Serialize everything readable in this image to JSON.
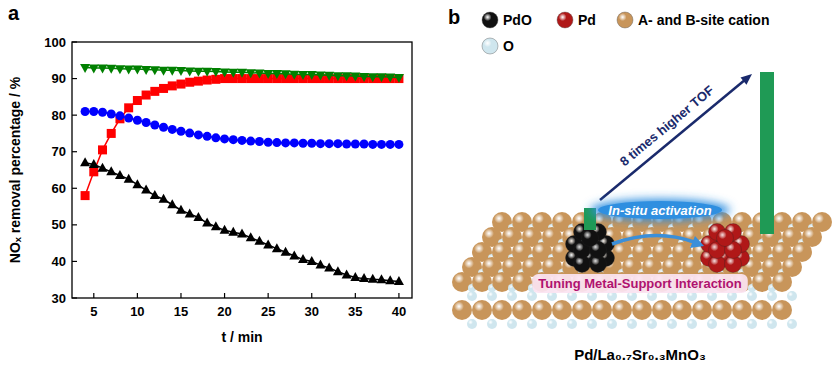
{
  "panel_labels": [
    "a",
    "b"
  ],
  "chart_data": {
    "type": "line",
    "xlabel": "t / min",
    "ylabel": "NOₓ removal percentage / %",
    "x": [
      4,
      5,
      6,
      7,
      8,
      9,
      10,
      11,
      12,
      13,
      14,
      15,
      16,
      17,
      18,
      19,
      20,
      21,
      22,
      23,
      24,
      25,
      26,
      27,
      28,
      29,
      30,
      31,
      32,
      33,
      34,
      35,
      36,
      37,
      38,
      39,
      40
    ],
    "xlim": [
      2.5,
      41.5
    ],
    "xticks": [
      5,
      10,
      15,
      20,
      25,
      30,
      35,
      40
    ],
    "ylim": [
      30,
      100
    ],
    "yticks": [
      30,
      40,
      50,
      60,
      70,
      80,
      90,
      100
    ],
    "grid": false,
    "series": [
      {
        "color": "#ff0000",
        "marker": "square",
        "line_style": "solid",
        "values": [
          58,
          64.5,
          70.5,
          75,
          79,
          82,
          84,
          85.5,
          86.5,
          87.3,
          88,
          88.5,
          89,
          89.3,
          89.6,
          89.8,
          90,
          90,
          90,
          90,
          90,
          90,
          90,
          90,
          90,
          90,
          90,
          90,
          90,
          90,
          90,
          90,
          90,
          90,
          90,
          90,
          90
        ]
      },
      {
        "color": "#0000ff",
        "marker": "circle",
        "line_style": "solid",
        "values": [
          81,
          81,
          80.8,
          80.3,
          79.8,
          79.2,
          78.6,
          78,
          77.3,
          76.7,
          76.1,
          75.6,
          75.1,
          74.6,
          74.2,
          73.8,
          73.5,
          73.3,
          73.1,
          72.9,
          72.8,
          72.6,
          72.5,
          72.4,
          72.4,
          72.3,
          72.3,
          72.2,
          72.2,
          72.2,
          72.1,
          72.1,
          72.1,
          72,
          72,
          72,
          72
        ]
      },
      {
        "color": "#000000",
        "marker": "triangle-up",
        "line_style": "solid",
        "values": [
          67,
          66.5,
          65.5,
          64.5,
          63.5,
          62.5,
          61,
          59.5,
          58,
          57,
          55.5,
          54,
          53,
          52,
          50.5,
          49.5,
          48.5,
          48,
          47.5,
          46.5,
          45.5,
          44.5,
          43.5,
          42.5,
          41.5,
          40.5,
          40,
          39,
          38.2,
          37.2,
          36.3,
          35.6,
          35.3,
          35.1,
          35,
          34.7,
          34.5
        ]
      },
      {
        "color": "#008000",
        "marker": "triangle-down",
        "line_style": "solid",
        "values": [
          93,
          92.9,
          92.9,
          92.8,
          92.7,
          92.6,
          92.6,
          92.5,
          92.4,
          92.3,
          92.3,
          92.2,
          92.1,
          92.0,
          92.0,
          91.9,
          91.8,
          91.7,
          91.7,
          91.6,
          91.5,
          91.4,
          91.4,
          91.3,
          91.2,
          91.1,
          91.1,
          91.0,
          90.9,
          90.8,
          90.8,
          90.7,
          90.6,
          90.5,
          90.5,
          90.4,
          90.3
        ]
      }
    ]
  },
  "diagram": {
    "legend": [
      {
        "label": "PdO",
        "color": "#111111"
      },
      {
        "label": "Pd",
        "color": "#b01818"
      },
      {
        "label": "A- and B-site cation",
        "color": "#c8955a"
      },
      {
        "label": "O",
        "color": "#cfe6ee"
      }
    ],
    "arrow_label": "8 times higher TOF",
    "activation_label": "In-situ activation",
    "interface_label": "Tuning Metal-Support Interaction",
    "material": "Pd/La₀.₇Sr₀.₃MnO₃"
  }
}
